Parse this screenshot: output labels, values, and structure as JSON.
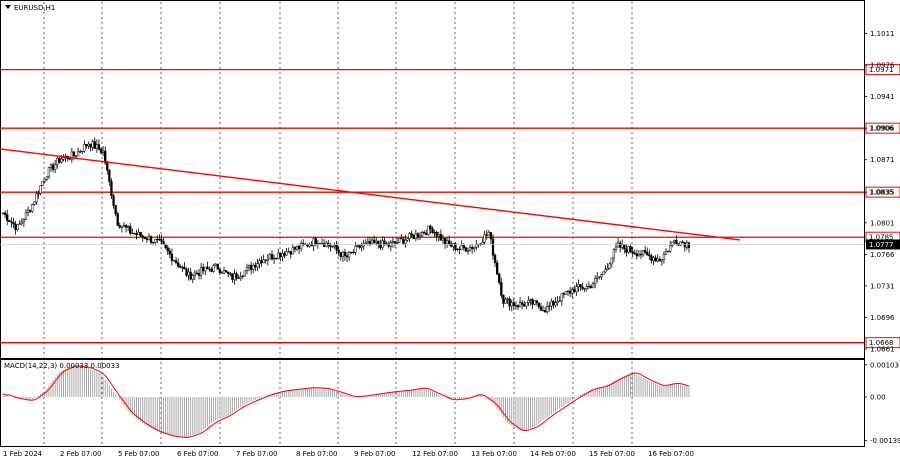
{
  "window": {
    "title": "EURUSD,H1"
  },
  "price_axis": {
    "labels": [
      "1.1011",
      "1.0976",
      "1.0941",
      "1.0906",
      "1.0871",
      "1.0835",
      "1.0801",
      "1.0766",
      "1.0731",
      "1.0696",
      "1.0661"
    ]
  },
  "time_axis": {
    "labels": [
      "1 Feb 2024",
      "2 Feb 07:00",
      "5 Feb 07:00",
      "6 Feb 07:00",
      "7 Feb 07:00",
      "8 Feb 07:00",
      "9 Feb 07:00",
      "12 Feb 07:00",
      "13 Feb 07:00",
      "14 Feb 07:00",
      "15 Feb 07:00",
      "16 Feb 07:00"
    ]
  },
  "levels": [
    {
      "label": "1.0971",
      "price": 1.0971
    },
    {
      "label": "1.0906",
      "price": 1.0906
    },
    {
      "label": "1.0835",
      "price": 1.0835
    },
    {
      "label": "1.0785",
      "price": 1.0785
    },
    {
      "label": "1.0668",
      "price": 1.0668
    }
  ],
  "current_price": {
    "label": "1.0777",
    "price": 1.0777
  },
  "colors": {
    "level": "#ff0000",
    "trendline": "#ff0000",
    "candle": "#000000",
    "price_tag": "#000000",
    "macd_hist": "#a0a0a0",
    "macd_signal": "#ff0000"
  },
  "macd": {
    "title": "MACD(14,22,3) 0.00033 0.00033",
    "labels": [
      "0.00103",
      "0.00",
      "-0.00139"
    ]
  },
  "chart_data": {
    "type": "candlestick",
    "title": "EURUSD,H1",
    "symbol": "EURUSD",
    "timeframe": "H1",
    "ylim": [
      1.0651,
      1.1046
    ],
    "price_ticks": [
      1.1011,
      1.0976,
      1.0941,
      1.0906,
      1.0871,
      1.0835,
      1.0801,
      1.0766,
      1.0731,
      1.0696,
      1.0661
    ],
    "horizontal_levels": [
      1.0971,
      1.0906,
      1.0835,
      1.0785,
      1.0668
    ],
    "trendline": [
      {
        "x": "1 Feb 2024",
        "y": 1.0883
      },
      {
        "x": "16 Feb 2024 19:00",
        "y": 1.0782
      }
    ],
    "x_labels": [
      "1 Feb 2024",
      "2 Feb 07:00",
      "5 Feb 07:00",
      "6 Feb 07:00",
      "7 Feb 07:00",
      "8 Feb 07:00",
      "9 Feb 07:00",
      "12 Feb 07:00",
      "13 Feb 07:00",
      "14 Feb 07:00",
      "15 Feb 07:00",
      "16 Feb 07:00"
    ],
    "close_path": [
      {
        "x": "1 Feb 2024",
        "y": 1.0812
      },
      {
        "x": "1 Feb 2024",
        "y": 1.0795
      },
      {
        "x": "1 Feb 2024",
        "y": 1.082
      },
      {
        "x": "1 Feb 2024",
        "y": 1.0855
      },
      {
        "x": "1 Feb 2024",
        "y": 1.0872
      },
      {
        "x": "2 Feb 07:00",
        "y": 1.0876
      },
      {
        "x": "2 Feb 07:00",
        "y": 1.089
      },
      {
        "x": "2 Feb 07:00",
        "y": 1.088
      },
      {
        "x": "2 Feb 07:00",
        "y": 1.0802
      },
      {
        "x": "2 Feb 07:00",
        "y": 1.079
      },
      {
        "x": "2 Feb 07:00",
        "y": 1.0785
      },
      {
        "x": "5 Feb 07:00",
        "y": 1.0778
      },
      {
        "x": "5 Feb 07:00",
        "y": 1.076
      },
      {
        "x": "5 Feb 07:00",
        "y": 1.0742
      },
      {
        "x": "5 Feb 07:00",
        "y": 1.0748
      },
      {
        "x": "6 Feb 07:00",
        "y": 1.0752
      },
      {
        "x": "6 Feb 07:00",
        "y": 1.074
      },
      {
        "x": "6 Feb 07:00",
        "y": 1.0748
      },
      {
        "x": "6 Feb 07:00",
        "y": 1.076
      },
      {
        "x": "7 Feb 07:00",
        "y": 1.0765
      },
      {
        "x": "7 Feb 07:00",
        "y": 1.077
      },
      {
        "x": "7 Feb 07:00",
        "y": 1.0775
      },
      {
        "x": "8 Feb 07:00",
        "y": 1.0782
      },
      {
        "x": "8 Feb 07:00",
        "y": 1.0775
      },
      {
        "x": "8 Feb 07:00",
        "y": 1.0762
      },
      {
        "x": "8 Feb 07:00",
        "y": 1.0775
      },
      {
        "x": "9 Feb 07:00",
        "y": 1.0778
      },
      {
        "x": "9 Feb 07:00",
        "y": 1.0776
      },
      {
        "x": "9 Feb 07:00",
        "y": 1.0782
      },
      {
        "x": "9 Feb 07:00",
        "y": 1.0788
      },
      {
        "x": "12 Feb 07:00",
        "y": 1.0795
      },
      {
        "x": "12 Feb 07:00",
        "y": 1.0778
      },
      {
        "x": "12 Feb 07:00",
        "y": 1.0772
      },
      {
        "x": "12 Feb 07:00",
        "y": 1.0775
      },
      {
        "x": "13 Feb 07:00",
        "y": 1.079
      },
      {
        "x": "13 Feb 07:00",
        "y": 1.0715
      },
      {
        "x": "13 Feb 07:00",
        "y": 1.071
      },
      {
        "x": "14 Feb 07:00",
        "y": 1.0712
      },
      {
        "x": "14 Feb 07:00",
        "y": 1.0705
      },
      {
        "x": "14 Feb 07:00",
        "y": 1.0718
      },
      {
        "x": "14 Feb 07:00",
        "y": 1.0728
      },
      {
        "x": "15 Feb 07:00",
        "y": 1.073
      },
      {
        "x": "15 Feb 07:00",
        "y": 1.0745
      },
      {
        "x": "15 Feb 07:00",
        "y": 1.0775
      },
      {
        "x": "15 Feb 07:00",
        "y": 1.077
      },
      {
        "x": "16 Feb 07:00",
        "y": 1.0765
      },
      {
        "x": "16 Feb 07:00",
        "y": 1.076
      },
      {
        "x": "16 Feb 07:00",
        "y": 1.0782
      },
      {
        "x": "16 Feb 07:00",
        "y": 1.0777
      }
    ],
    "macd_histogram_profile": [
      0.0001,
      -5e-05,
      -0.00012,
      0.0002,
      0.0008,
      0.001,
      0.00095,
      0.00075,
      0.0001,
      -0.0005,
      -0.00085,
      -0.0011,
      -0.00125,
      -0.0013,
      -0.00115,
      -0.0008,
      -0.0006,
      -0.0003,
      -0.0001,
      8e-05,
      0.0002,
      0.00025,
      0.0003,
      0.00028,
      0.00015,
      0.0,
      5e-05,
      0.00012,
      0.00018,
      0.00022,
      0.0003,
      0.0001,
      -0.0001,
      -5e-05,
      0.0001,
      -0.0002,
      -0.0008,
      -0.0011,
      -0.00095,
      -0.0006,
      -0.0003,
      0.0,
      0.00025,
      0.00035,
      0.0006,
      0.0008,
      0.00055,
      0.00035,
      0.00045,
      0.00033
    ],
    "macd_ylim": [
      -0.0015,
      0.00115
    ]
  }
}
